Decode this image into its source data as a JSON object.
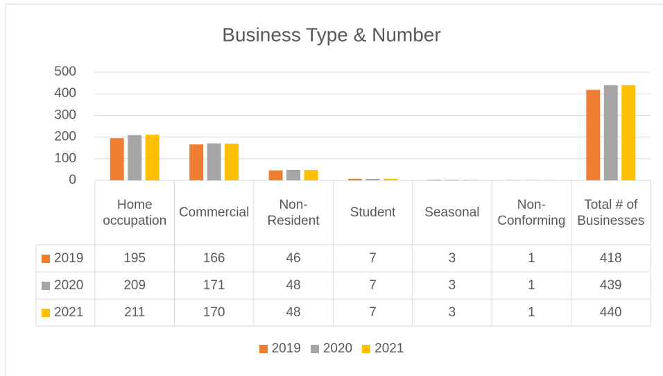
{
  "chart_data": {
    "type": "bar",
    "title": "Business Type & Number",
    "categories": [
      "Home occupation",
      "Commercial",
      "Non-Resident",
      "Student",
      "Seasonal",
      "Non-Conforming",
      "Total # of Businesses"
    ],
    "series": [
      {
        "name": "2019",
        "color": "#ED7D31",
        "values": [
          195,
          166,
          46,
          7,
          3,
          1,
          418
        ]
      },
      {
        "name": "2020",
        "color": "#A5A5A5",
        "values": [
          209,
          171,
          48,
          7,
          3,
          1,
          439
        ]
      },
      {
        "name": "2021",
        "color": "#FFC000",
        "values": [
          211,
          170,
          48,
          7,
          3,
          1,
          440
        ]
      }
    ],
    "ylim": [
      0,
      500
    ],
    "yticks": [
      0,
      100,
      200,
      300,
      400,
      500
    ],
    "grid": true,
    "legend": "bottom"
  }
}
